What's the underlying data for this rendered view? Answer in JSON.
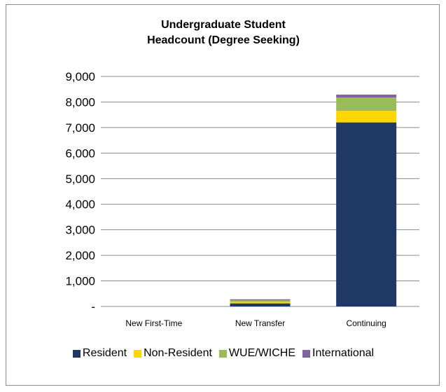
{
  "chart_data": {
    "type": "bar",
    "stacked": true,
    "title_lines": [
      "Undergraduate  Student",
      "Headcount (Degree Seeking)"
    ],
    "categories": [
      "New First-Time",
      "New Transfer",
      "Continuing"
    ],
    "y_ticks": [
      "-",
      "1,000",
      "2,000",
      "3,000",
      "4,000",
      "5,000",
      "6,000",
      "7,000",
      "8,000",
      "9,000"
    ],
    "ylim": [
      0,
      9000
    ],
    "grid": true,
    "legend_position": "bottom",
    "series": [
      {
        "name": "Resident",
        "color": "#1f3864",
        "values": [
          0,
          120,
          7200
        ]
      },
      {
        "name": "Non-Resident",
        "color": "#ffd700",
        "values": [
          0,
          60,
          450
        ]
      },
      {
        "name": "WUE/WICHE",
        "color": "#9bbb59",
        "values": [
          0,
          60,
          520
        ]
      },
      {
        "name": "International",
        "color": "#8064a2",
        "values": [
          0,
          40,
          120
        ]
      }
    ]
  }
}
